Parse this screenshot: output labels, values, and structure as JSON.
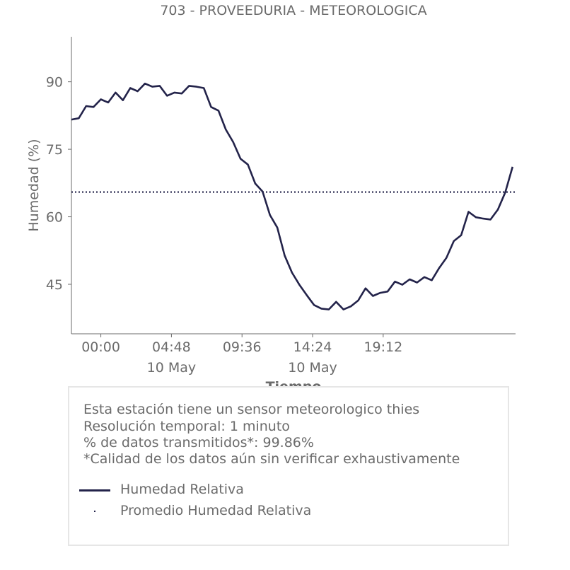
{
  "chart_data": {
    "type": "line",
    "title": "703 - PROVEEDURIA - METEOROLOGICA",
    "xlabel": "Tiempo",
    "ylabel": "Humedad (%)",
    "ylim": [
      34,
      100
    ],
    "yticks": [
      45,
      60,
      75,
      90
    ],
    "xlim": [
      -2,
      28.2
    ],
    "xticks": [
      {
        "hour": 0,
        "label": "00:00",
        "sub": ""
      },
      {
        "hour": 4.8,
        "label": "04:48",
        "sub": "10 May"
      },
      {
        "hour": 9.6,
        "label": "09:36",
        "sub": ""
      },
      {
        "hour": 14.4,
        "label": "14:24",
        "sub": "10 May"
      },
      {
        "hour": 19.2,
        "label": "19:12",
        "sub": ""
      }
    ],
    "x_units": "hours since 00:00 10 May",
    "grid": false,
    "series": [
      {
        "name": "Humedad Relativa",
        "color": "#23234a",
        "x": [
          -2.0,
          -1.5,
          -1.0,
          -0.5,
          0.0,
          0.5,
          1.0,
          1.5,
          2.0,
          2.5,
          3.0,
          3.5,
          4.0,
          4.5,
          5.0,
          5.5,
          6.0,
          6.5,
          7.0,
          7.5,
          8.0,
          8.5,
          9.0,
          9.5,
          10.0,
          10.5,
          11.0,
          11.5,
          12.0,
          12.5,
          13.0,
          13.5,
          14.0,
          14.5,
          15.0,
          15.5,
          16.0,
          16.5,
          17.0,
          17.5,
          18.0,
          18.5,
          19.0,
          19.5,
          20.0,
          20.5,
          21.0,
          21.5,
          22.0,
          22.5,
          23.0,
          23.5,
          24.0,
          24.5,
          25.0,
          25.5,
          26.0,
          26.5,
          27.0,
          27.5,
          28.0
        ],
        "values": [
          81.0,
          82.5,
          84.0,
          85.0,
          85.5,
          86.0,
          87.0,
          86.5,
          88.0,
          88.5,
          89.0,
          89.5,
          88.5,
          87.5,
          87.0,
          88.0,
          88.5,
          89.5,
          88.0,
          85.0,
          83.0,
          80.0,
          76.0,
          73.5,
          71.0,
          68.0,
          65.0,
          61.0,
          57.0,
          52.0,
          47.0,
          45.5,
          42.0,
          41.0,
          39.0,
          40.0,
          40.5,
          40.0,
          39.5,
          42.0,
          43.5,
          43.0,
          42.5,
          44.0,
          45.0,
          45.5,
          45.5,
          46.0,
          46.0,
          46.5,
          48.0,
          51.5,
          54.0,
          56.5,
          60.5,
          60.5,
          59.0,
          60.0,
          61.0,
          66.0,
          70.5
        ]
      },
      {
        "name": "Promedio Humedad Relativa",
        "color": "#23234a",
        "style": "dotted",
        "values": [
          65.5
        ]
      }
    ]
  },
  "info": {
    "lines": [
      "Esta estación tiene un sensor meteorologico thies",
      "Resolución temporal: 1 minuto",
      "% de datos transmitidos*: 99.86%",
      "*Calidad de los datos aún sin verificar exhaustivamente"
    ]
  },
  "legend": {
    "items": [
      {
        "label": "Humedad Relativa"
      },
      {
        "label": "Promedio Humedad Relativa"
      }
    ]
  },
  "colors": {
    "series": "#23234a",
    "text": "#6b6b6b",
    "axis": "#6b6b6b"
  }
}
